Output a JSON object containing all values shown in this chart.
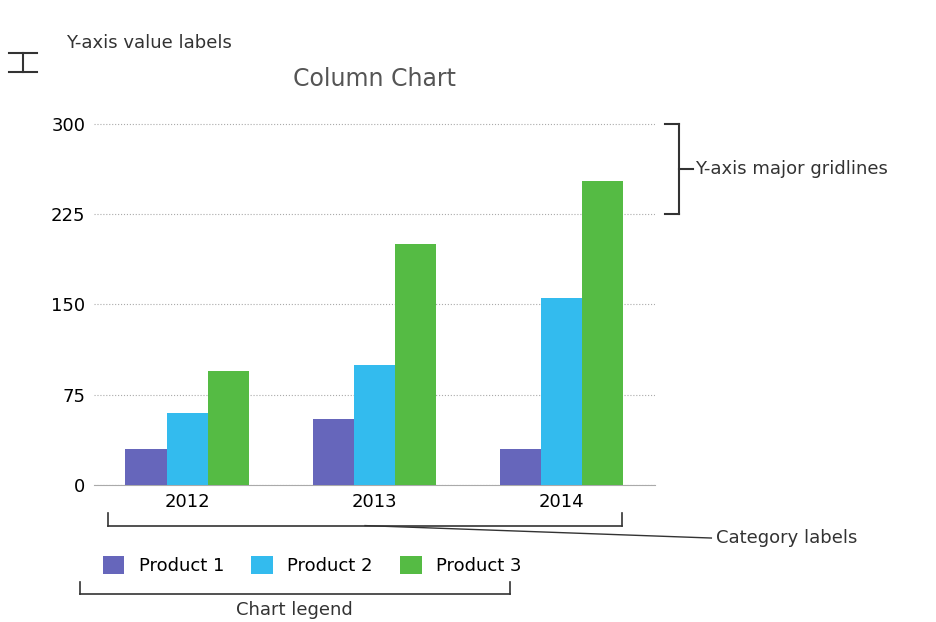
{
  "title": "Column Chart",
  "categories": [
    "2012",
    "2013",
    "2014"
  ],
  "products": [
    "Product 1",
    "Product 2",
    "Product 3"
  ],
  "values": {
    "Product 1": [
      30,
      55,
      30
    ],
    "Product 2": [
      60,
      100,
      155
    ],
    "Product 3": [
      95,
      200,
      252
    ]
  },
  "colors": {
    "Product 1": "#6666bb",
    "Product 2": "#33bbee",
    "Product 3": "#55bb44"
  },
  "ylim": [
    0,
    320
  ],
  "yticks": [
    0,
    75,
    150,
    225,
    300
  ],
  "background_color": "#ffffff",
  "grid_color": "#aaaaaa",
  "title_fontsize": 17,
  "tick_fontsize": 13,
  "legend_fontsize": 13,
  "bar_width": 0.22,
  "annotation_fontsize": 13,
  "annotation_color": "#333333"
}
